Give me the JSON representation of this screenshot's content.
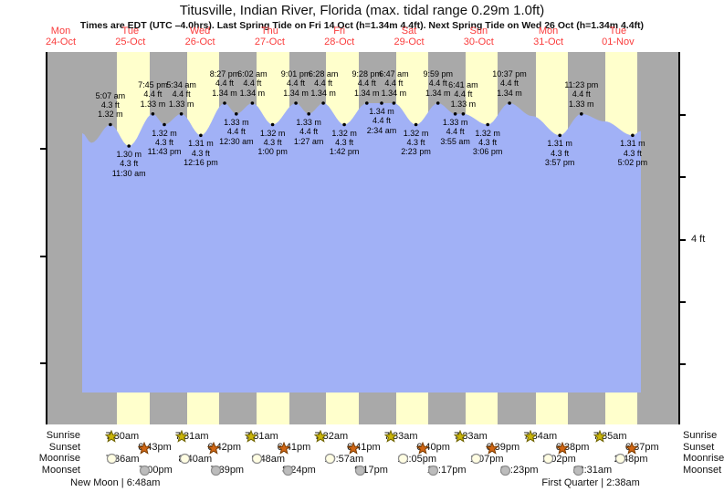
{
  "title": "Titusville, Indian River, Florida (max. tidal range 0.29m 1.0ft)",
  "subtitle": "Times are EDT (UTC –4.0hrs). Last Spring Tide on Fri 14 Oct (h=1.34m 4.4ft). Next Spring Tide on Wed 26 Oct (h=1.34m 4.4ft)",
  "axis": {
    "right_label": "4 ft"
  },
  "days": [
    {
      "dow": "Mon",
      "date": "24-Oct"
    },
    {
      "dow": "Tue",
      "date": "25-Oct"
    },
    {
      "dow": "Wed",
      "date": "26-Oct"
    },
    {
      "dow": "Thu",
      "date": "27-Oct"
    },
    {
      "dow": "Fri",
      "date": "28-Oct"
    },
    {
      "dow": "Sat",
      "date": "29-Oct"
    },
    {
      "dow": "Sun",
      "date": "30-Oct"
    },
    {
      "dow": "Mon",
      "date": "31-Oct"
    },
    {
      "dow": "Tue",
      "date": "01-Nov"
    }
  ],
  "chart_data": {
    "type": "area",
    "title": "Tide height curve (blue = water level, yellow = daylight, grey = night)",
    "y_right_tick_label": "4 ft",
    "tide_events": [
      {
        "day": 1,
        "time": "5:07 am",
        "ft": "4.3 ft",
        "m": "1.32 m",
        "type": "high"
      },
      {
        "day": 1,
        "time": "11:30 am",
        "ft": "4.3 ft",
        "m": "1.30 m",
        "type": "low"
      },
      {
        "day": 1,
        "time": "7:45 pm",
        "ft": "4.4 ft",
        "m": "1.33 m",
        "type": "high"
      },
      {
        "day": 1,
        "time": "11:43 pm",
        "ft": "4.3 ft",
        "m": "1.32 m",
        "type": "low"
      },
      {
        "day": 2,
        "time": "5:34 am",
        "ft": "4.4 ft",
        "m": "1.33 m",
        "type": "high"
      },
      {
        "day": 2,
        "time": "12:16 pm",
        "ft": "4.3 ft",
        "m": "1.31 m",
        "type": "low"
      },
      {
        "day": 2,
        "time": "8:27 pm",
        "ft": "4.4 ft",
        "m": "1.34 m",
        "type": "high"
      },
      {
        "day": 3,
        "time": "12:30 am",
        "ft": "4.4 ft",
        "m": "1.33 m",
        "type": "low"
      },
      {
        "day": 3,
        "time": "6:02 am",
        "ft": "4.4 ft",
        "m": "1.34 m",
        "type": "high"
      },
      {
        "day": 3,
        "time": "1:00 pm",
        "ft": "4.3 ft",
        "m": "1.32 m",
        "type": "low"
      },
      {
        "day": 3,
        "time": "9:01 pm",
        "ft": "4.4 ft",
        "m": "1.34 m",
        "type": "high"
      },
      {
        "day": 4,
        "time": "1:27 am",
        "ft": "4.4 ft",
        "m": "1.33 m",
        "type": "low"
      },
      {
        "day": 4,
        "time": "6:28 am",
        "ft": "4.4 ft",
        "m": "1.34 m",
        "type": "high"
      },
      {
        "day": 4,
        "time": "1:42 pm",
        "ft": "4.3 ft",
        "m": "1.32 m",
        "type": "low"
      },
      {
        "day": 4,
        "time": "9:28 pm",
        "ft": "4.4 ft",
        "m": "1.34 m",
        "type": "high"
      },
      {
        "day": 5,
        "time": "2:34 am",
        "ft": "4.4 ft",
        "m": "1.34 m",
        "type": "low"
      },
      {
        "day": 5,
        "time": "6:47 am",
        "ft": "4.4 ft",
        "m": "1.34 m",
        "type": "high"
      },
      {
        "day": 5,
        "time": "2:23 pm",
        "ft": "4.3 ft",
        "m": "1.32 m",
        "type": "low"
      },
      {
        "day": 5,
        "time": "9:59 pm",
        "ft": "4.4 ft",
        "m": "1.34 m",
        "type": "high"
      },
      {
        "day": 6,
        "time": "3:55 am",
        "ft": "4.4 ft",
        "m": "1.33 m",
        "type": "low"
      },
      {
        "day": 6,
        "time": "6:41 am",
        "ft": "4.4 ft",
        "m": "1.33 m",
        "type": "high"
      },
      {
        "day": 6,
        "time": "3:06 pm",
        "ft": "4.3 ft",
        "m": "1.32 m",
        "type": "low"
      },
      {
        "day": 6,
        "time": "10:37 pm",
        "ft": "4.4 ft",
        "m": "1.34 m",
        "type": "high"
      },
      {
        "day": 7,
        "time": "3:57 pm",
        "ft": "4.3 ft",
        "m": "1.31 m",
        "type": "low"
      },
      {
        "day": 7,
        "time": "11:23 pm",
        "ft": "4.4 ft",
        "m": "1.33 m",
        "type": "high"
      },
      {
        "day": 8,
        "time": "5:02 pm",
        "ft": "4.3 ft",
        "m": "1.31 m",
        "type": "low"
      }
    ]
  },
  "astro": {
    "rows": [
      {
        "label": "Sunrise",
        "icon": "sunrise-star-icon",
        "entries": [
          {
            "day": 1,
            "time": "7:30am"
          },
          {
            "day": 2,
            "time": "7:31am"
          },
          {
            "day": 3,
            "time": "7:31am"
          },
          {
            "day": 4,
            "time": "7:32am"
          },
          {
            "day": 5,
            "time": "7:33am"
          },
          {
            "day": 6,
            "time": "7:33am"
          },
          {
            "day": 7,
            "time": "7:34am"
          },
          {
            "day": 8,
            "time": "7:35am"
          }
        ]
      },
      {
        "label": "Sunset",
        "icon": "sunset-star-icon",
        "entries": [
          {
            "day": 1,
            "time": "6:43pm"
          },
          {
            "day": 2,
            "time": "6:42pm"
          },
          {
            "day": 3,
            "time": "6:41pm"
          },
          {
            "day": 4,
            "time": "6:41pm"
          },
          {
            "day": 5,
            "time": "6:40pm"
          },
          {
            "day": 6,
            "time": "6:39pm"
          },
          {
            "day": 7,
            "time": "6:38pm"
          },
          {
            "day": 8,
            "time": "6:37pm"
          }
        ]
      },
      {
        "label": "Moonrise",
        "icon": "moonrise-circle-icon",
        "entries": [
          {
            "day": 1,
            "time": "7:36am"
          },
          {
            "day": 2,
            "time": "8:40am"
          },
          {
            "day": 3,
            "time": "9:48am"
          },
          {
            "day": 4,
            "time": "10:57am"
          },
          {
            "day": 5,
            "time": "12:05pm"
          },
          {
            "day": 6,
            "time": "1:07pm"
          },
          {
            "day": 7,
            "time": "2:02pm"
          },
          {
            "day": 8,
            "time": "2:48pm"
          }
        ]
      },
      {
        "label": "Moonset",
        "icon": "moonset-circle-icon",
        "entries": [
          {
            "day": 1,
            "time": "7:00pm"
          },
          {
            "day": 2,
            "time": "7:39pm"
          },
          {
            "day": 3,
            "time": "8:24pm"
          },
          {
            "day": 4,
            "time": "9:17pm"
          },
          {
            "day": 5,
            "time": "10:17pm"
          },
          {
            "day": 6,
            "time": "11:23pm"
          },
          {
            "day": 8,
            "time": "12:31am"
          }
        ]
      }
    ],
    "phases": [
      {
        "text": "New Moon | 6:48am",
        "day": 1,
        "time": "6:48am"
      },
      {
        "text": "First Quarter | 2:38am",
        "day": 8,
        "time": "2:38am"
      }
    ]
  },
  "colors": {
    "night_grey": "#a9a9a9",
    "daylight_yellow": "#ffffcc",
    "water_blue": "#a1b1f6",
    "day_label_red": "#fa3c3c",
    "sunrise_star": "#c9b409",
    "sunrise_star_edge": "#6f6400",
    "sunset_star": "#d06514",
    "sunset_star_edge": "#7a3c00",
    "moonrise_fill": "#fffde2",
    "moonset_fill": "#bcbcbc",
    "moon_edge": "#8f8f8f"
  }
}
